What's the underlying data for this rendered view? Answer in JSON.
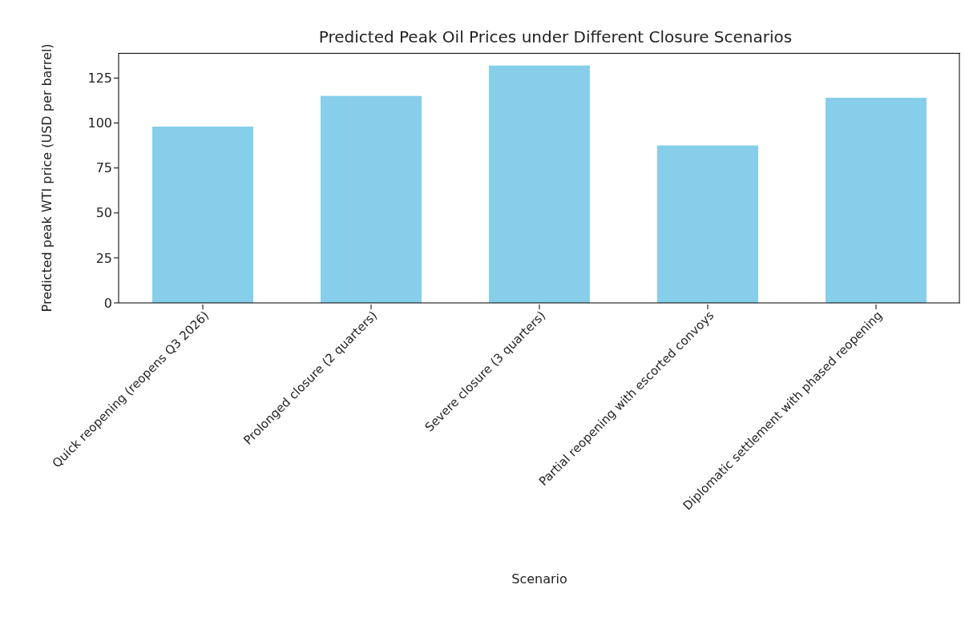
{
  "chart_data": {
    "type": "bar",
    "title": "Predicted Peak Oil Prices under Different Closure Scenarios",
    "xlabel": "Scenario",
    "ylabel": "Predicted peak WTI price (USD per barrel)",
    "categories": [
      "Quick reopening (reopens Q3 2026)",
      "Prolonged closure (2 quarters)",
      "Severe closure (3 quarters)",
      "Partial reopening with escorted convoys",
      "Diplomatic settlement with phased reopening"
    ],
    "values": [
      98,
      115,
      132,
      87.5,
      114
    ],
    "color": "#87ceeb",
    "ylim": [
      0,
      139
    ],
    "yticks": [
      0,
      25,
      50,
      75,
      100,
      125
    ],
    "grid": false
  }
}
